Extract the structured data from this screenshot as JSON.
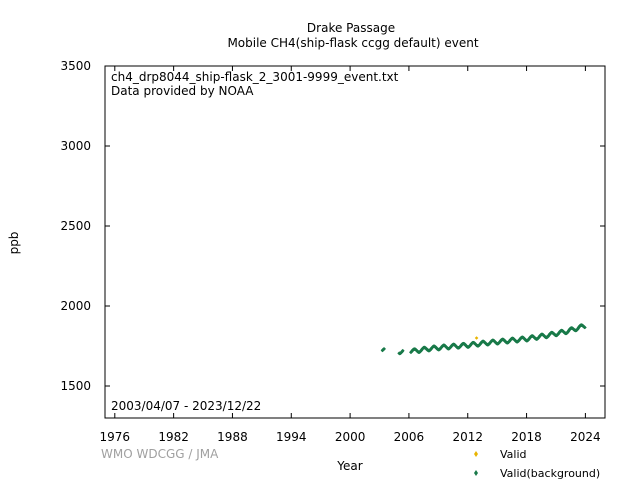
{
  "chart_data": {
    "type": "scatter",
    "title_line1": "Drake Passage",
    "title_line2": "Mobile    CH4(ship-flask ccgg default) event",
    "annotation_file": "ch4_drp8044_ship-flask_2_3001-9999_event.txt",
    "annotation_provider": "Data provided by NOAA",
    "date_range": "2003/04/07 - 2023/12/22",
    "xlabel": "Year",
    "ylabel": "ppb",
    "credit": "WMO WDCGG / JMA",
    "xlim": [
      1975,
      2026
    ],
    "ylim": [
      1300,
      3500
    ],
    "x_ticks": [
      "1976",
      "1982",
      "1988",
      "1994",
      "2000",
      "2006",
      "2012",
      "2018",
      "2024"
    ],
    "y_ticks": [
      "1500",
      "2000",
      "2500",
      "3000",
      "3500"
    ],
    "legend_position": "bottom-right, below plot",
    "grid": false,
    "series": [
      {
        "name": "Valid",
        "color": "#e8b400",
        "points": [
          [
            2012.9,
            1800
          ]
        ]
      },
      {
        "name": "Valid(background)",
        "color": "#1a7a4a",
        "trend": [
          [
            2003.3,
            1722
          ],
          [
            2005.2,
            1715
          ],
          [
            2006.5,
            1718
          ],
          [
            2008.0,
            1733
          ],
          [
            2010.0,
            1745
          ],
          [
            2012.0,
            1755
          ],
          [
            2014.0,
            1770
          ],
          [
            2016.0,
            1782
          ],
          [
            2018.0,
            1795
          ],
          [
            2020.0,
            1815
          ],
          [
            2022.0,
            1840
          ],
          [
            2023.97,
            1876
          ]
        ],
        "seasonal_amplitude": 12,
        "gaps": [
          [
            2003.5,
            2005.0
          ],
          [
            2005.4,
            2006.2
          ]
        ]
      }
    ]
  }
}
